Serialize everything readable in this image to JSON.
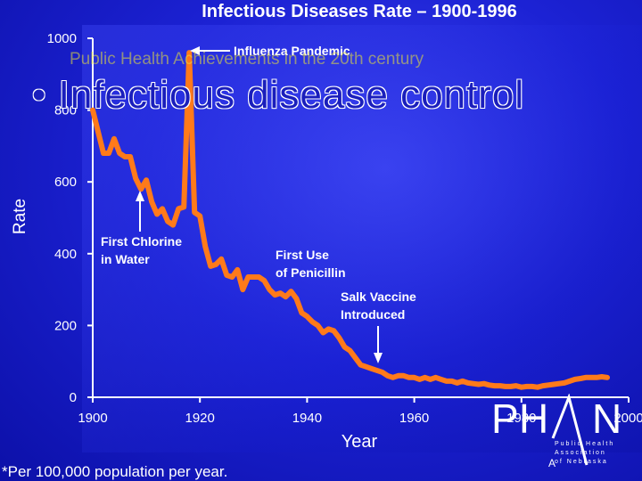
{
  "slide": {
    "subtitle": "Public Health Achievements in the 20th century",
    "bullet": "• Infectious disease control",
    "footnote": "*Per 100,000 population per year."
  },
  "logo": {
    "letters": [
      "P",
      "H",
      "A",
      "N"
    ],
    "tagline": [
      "Public Health",
      "Association",
      "of Nebraska"
    ]
  },
  "colors": {
    "line": "#ff7a1a",
    "text": "#ffffff",
    "background": "#1418c8"
  },
  "chart_data": {
    "type": "line",
    "title": "Infectious Diseases Rate – 1900-1996",
    "xlabel": "Year",
    "ylabel": "Rate",
    "xlim": [
      1900,
      2000
    ],
    "ylim": [
      0,
      1000
    ],
    "xticks": [
      1900,
      1920,
      1940,
      1960,
      1980,
      2000
    ],
    "yticks": [
      0,
      200,
      400,
      600,
      800,
      1000
    ],
    "grid": false,
    "series": [
      {
        "x": [
          1900,
          1901,
          1902,
          1903,
          1904,
          1905,
          1906,
          1907,
          1908,
          1909,
          1910,
          1911,
          1912,
          1913,
          1914,
          1915,
          1916,
          1917,
          1918,
          1919,
          1920,
          1921,
          1922,
          1923,
          1924,
          1925,
          1926,
          1927,
          1928,
          1929,
          1930,
          1931,
          1932,
          1933,
          1934,
          1935,
          1936,
          1937,
          1938,
          1939,
          1940,
          1941,
          1942,
          1943,
          1944,
          1945,
          1946,
          1947,
          1948,
          1949,
          1950,
          1951,
          1952,
          1953,
          1954,
          1955,
          1956,
          1957,
          1958,
          1959,
          1960,
          1961,
          1962,
          1963,
          1964,
          1965,
          1966,
          1967,
          1968,
          1969,
          1970,
          1971,
          1972,
          1973,
          1974,
          1975,
          1976,
          1977,
          1978,
          1979,
          1980,
          1981,
          1982,
          1983,
          1984,
          1985,
          1986,
          1987,
          1988,
          1989,
          1990,
          1991,
          1992,
          1993,
          1994,
          1995,
          1996
        ],
        "y": [
          800,
          740,
          680,
          680,
          720,
          680,
          670,
          670,
          610,
          580,
          605,
          545,
          510,
          525,
          490,
          480,
          525,
          530,
          960,
          515,
          505,
          420,
          365,
          370,
          385,
          340,
          335,
          355,
          300,
          335,
          335,
          335,
          325,
          300,
          285,
          290,
          280,
          295,
          275,
          235,
          225,
          210,
          200,
          180,
          190,
          185,
          165,
          140,
          130,
          110,
          90,
          85,
          80,
          75,
          70,
          60,
          55,
          60,
          60,
          55,
          55,
          50,
          55,
          50,
          55,
          50,
          45,
          45,
          40,
          45,
          40,
          38,
          36,
          38,
          34,
          32,
          32,
          30,
          30,
          32,
          28,
          30,
          30,
          28,
          32,
          34,
          36,
          38,
          40,
          45,
          50,
          52,
          55,
          55,
          55,
          57,
          55
        ]
      }
    ],
    "annotations": [
      {
        "text": "Influenza Pandemic",
        "x": 1918,
        "y": 960
      },
      {
        "text": "First Chlorine in Water",
        "x": 1908,
        "y": 580
      },
      {
        "text": "First Use of Penicillin",
        "x": 1942,
        "y": 200
      },
      {
        "text": "Salk Vaccine Introduced",
        "x": 1955,
        "y": 60
      }
    ]
  }
}
